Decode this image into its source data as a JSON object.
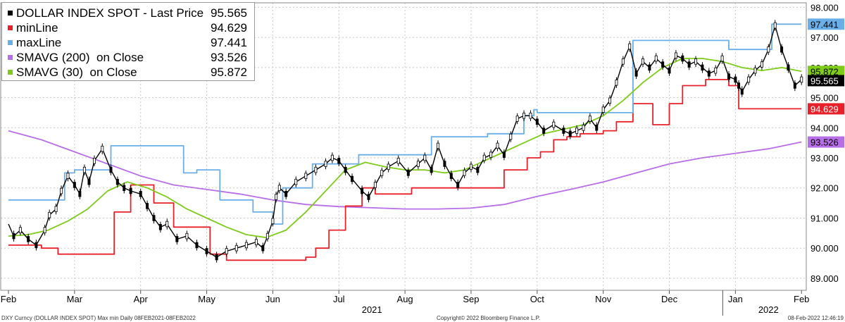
{
  "chart_data": {
    "type": "line",
    "title": "DOLLAR INDEX SPOT",
    "y_ticks": [
      "89.000",
      "90.000",
      "91.000",
      "92.000",
      "93.000",
      "94.000",
      "95.000",
      "96.000",
      "97.000",
      "98.000"
    ],
    "ylim": [
      88.6,
      98.15
    ],
    "x_months": [
      {
        "label": "Feb",
        "x": 0
      },
      {
        "label": "Mar",
        "x": 1
      },
      {
        "label": "Apr",
        "x": 2
      },
      {
        "label": "May",
        "x": 3
      },
      {
        "label": "Jun",
        "x": 4
      },
      {
        "label": "Jul",
        "x": 5
      },
      {
        "label": "Aug",
        "x": 6
      },
      {
        "label": "Sep",
        "x": 7
      },
      {
        "label": "Oct",
        "x": 8
      },
      {
        "label": "Nov",
        "x": 9
      },
      {
        "label": "Dec",
        "x": 10
      },
      {
        "label": "Jan",
        "x": 11
      },
      {
        "label": "Feb",
        "x": 12
      }
    ],
    "x_years": [
      {
        "label": "2021",
        "x": 5.5
      },
      {
        "label": "2022",
        "x": 11.5
      }
    ],
    "xlim": [
      0,
      12.2
    ],
    "legend": [
      {
        "name": "DOLLAR INDEX SPOT - Last Price",
        "value": "95.565",
        "color": "#000000"
      },
      {
        "name": "minLine",
        "value": "94.629",
        "color": "#e8202a"
      },
      {
        "name": "maxLine",
        "value": "97.441",
        "color": "#6aaee8"
      },
      {
        "name": "SMAVG (200)  on Close",
        "value": "93.526",
        "color": "#b86ee6"
      },
      {
        "name": "SMAVG (30)  on Close",
        "value": "95.872",
        "color": "#7ecb1a"
      }
    ],
    "last_value_tags": [
      {
        "series": "maxLine",
        "value": 97.441,
        "text": "97.441",
        "bg": "#6aaee8",
        "fg": "#000000"
      },
      {
        "series": "SMAVG (30)  on Close",
        "value": 95.872,
        "text": "95.872",
        "bg": "#7ecb1a",
        "fg": "#000000"
      },
      {
        "series": "DOLLAR INDEX SPOT - Last Price",
        "value": 95.565,
        "text": "95.565",
        "bg": "#000000",
        "fg": "#ffffff"
      },
      {
        "series": "minLine",
        "value": 94.629,
        "text": "94.629",
        "bg": "#e8202a",
        "fg": "#ffffff"
      },
      {
        "series": "SMAVG (200)  on Close",
        "value": 93.526,
        "text": "93.526",
        "bg": "#b86ee6",
        "fg": "#000000"
      }
    ],
    "series": [
      {
        "name": "DOLLAR INDEX SPOT - Last Price",
        "color": "#000000",
        "x": [
          0,
          0.08,
          0.18,
          0.3,
          0.42,
          0.55,
          0.62,
          0.72,
          0.8,
          0.9,
          1.0,
          1.08,
          1.15,
          1.22,
          1.3,
          1.42,
          1.55,
          1.65,
          1.75,
          1.85,
          2.0,
          2.1,
          2.2,
          2.3,
          2.4,
          2.55,
          2.7,
          2.85,
          3.0,
          3.15,
          3.3,
          3.45,
          3.6,
          3.75,
          3.85,
          3.92,
          4.0,
          4.05,
          4.1,
          4.2,
          4.35,
          4.5,
          4.65,
          4.8,
          4.9,
          5.0,
          5.1,
          5.2,
          5.35,
          5.45,
          5.55,
          5.65,
          5.75,
          5.9,
          6.05,
          6.2,
          6.3,
          6.4,
          6.5,
          6.6,
          6.7,
          6.8,
          6.9,
          7.0,
          7.1,
          7.2,
          7.3,
          7.4,
          7.5,
          7.6,
          7.7,
          7.8,
          7.9,
          8.0,
          8.1,
          8.25,
          8.4,
          8.5,
          8.6,
          8.7,
          8.8,
          8.9,
          9.0,
          9.1,
          9.2,
          9.3,
          9.4,
          9.5,
          9.6,
          9.7,
          9.8,
          9.9,
          10.0,
          10.1,
          10.2,
          10.3,
          10.4,
          10.5,
          10.6,
          10.7,
          10.8,
          10.9,
          11.0,
          11.05,
          11.1,
          11.2,
          11.3,
          11.4,
          11.5,
          11.6,
          11.7,
          11.8,
          11.9,
          12.0
        ],
        "y": [
          90.8,
          90.4,
          90.6,
          90.3,
          90.1,
          90.6,
          91.1,
          91.3,
          91.9,
          92.4,
          92.1,
          91.8,
          92.6,
          92.2,
          92.9,
          93.3,
          92.6,
          92.2,
          92.0,
          91.9,
          91.8,
          91.4,
          91.0,
          90.7,
          90.8,
          90.3,
          90.4,
          90.1,
          89.9,
          89.7,
          89.9,
          90.0,
          90.1,
          90.2,
          90.0,
          90.4,
          90.9,
          91.7,
          92.0,
          91.8,
          92.2,
          92.4,
          92.6,
          92.8,
          93.0,
          92.9,
          92.6,
          92.3,
          91.9,
          91.7,
          92.1,
          92.5,
          92.7,
          92.9,
          92.5,
          92.8,
          93.0,
          92.6,
          93.4,
          92.8,
          92.4,
          92.1,
          92.5,
          92.7,
          92.6,
          93.0,
          93.1,
          93.4,
          93.1,
          93.7,
          94.3,
          94.4,
          94.4,
          94.2,
          93.9,
          94.1,
          93.9,
          93.8,
          93.9,
          94.0,
          94.3,
          94.0,
          94.6,
          94.9,
          95.5,
          96.2,
          96.7,
          95.8,
          96.2,
          96.0,
          96.3,
          96.1,
          95.9,
          96.4,
          96.3,
          96.1,
          96.2,
          96.0,
          95.8,
          95.9,
          96.3,
          95.7,
          95.6,
          95.4,
          95.2,
          95.6,
          95.9,
          96.1,
          96.6,
          97.4,
          96.6,
          96.0,
          95.4,
          95.6
        ]
      },
      {
        "name": "minLine",
        "color": "#e8202a",
        "x": [
          0,
          0.5,
          0.5,
          0.75,
          0.75,
          1.6,
          1.6,
          1.85,
          1.85,
          2.2,
          2.2,
          2.5,
          2.5,
          3.05,
          3.05,
          3.3,
          3.3,
          4.5,
          4.5,
          4.65,
          4.65,
          4.85,
          4.85,
          5.1,
          5.1,
          5.35,
          5.35,
          5.55,
          5.55,
          6.1,
          6.1,
          7.5,
          7.5,
          7.85,
          7.85,
          8.05,
          8.05,
          8.25,
          8.25,
          8.45,
          8.45,
          8.65,
          8.65,
          9.0,
          9.0,
          9.2,
          9.2,
          9.45,
          9.45,
          9.75,
          9.75,
          10.0,
          10.0,
          10.2,
          10.2,
          10.55,
          10.55,
          10.9,
          10.9,
          11.05,
          11.05,
          12.0
        ],
        "y": [
          90.1,
          90.1,
          90.0,
          90.0,
          89.8,
          89.8,
          91.2,
          91.2,
          92.1,
          92.1,
          91.5,
          91.5,
          90.7,
          90.7,
          89.8,
          89.8,
          89.6,
          89.6,
          89.7,
          89.7,
          90.0,
          90.0,
          90.6,
          90.6,
          91.4,
          91.4,
          92.0,
          92.0,
          91.8,
          91.8,
          92.0,
          92.0,
          92.6,
          92.6,
          93.0,
          93.0,
          93.2,
          93.2,
          93.6,
          93.6,
          93.7,
          93.7,
          93.8,
          93.8,
          93.9,
          93.9,
          94.2,
          94.2,
          94.8,
          94.8,
          94.1,
          94.1,
          94.8,
          94.8,
          95.4,
          95.4,
          95.6,
          95.6,
          95.4,
          95.4,
          94.629,
          94.629
        ]
      },
      {
        "name": "maxLine",
        "color": "#6aaee8",
        "x": [
          0,
          0.85,
          0.85,
          1.0,
          1.0,
          1.55,
          1.55,
          2.65,
          2.65,
          2.85,
          2.85,
          3.2,
          3.2,
          3.7,
          3.7,
          4.0,
          4.0,
          4.15,
          4.15,
          4.6,
          4.6,
          5.3,
          5.3,
          6.4,
          6.4,
          7.25,
          7.25,
          7.8,
          7.8,
          7.95,
          7.95,
          8.0,
          8.0,
          8.95,
          8.95,
          9.45,
          9.45,
          10.0,
          10.0,
          10.85,
          10.85,
          10.9,
          10.9,
          11.55,
          11.55,
          12.0
        ],
        "y": [
          91.6,
          91.6,
          92.5,
          92.5,
          92.6,
          92.6,
          93.4,
          93.4,
          92.5,
          92.5,
          92.6,
          92.6,
          91.6,
          91.6,
          91.2,
          91.2,
          90.8,
          90.8,
          92.0,
          92.0,
          92.8,
          92.8,
          93.1,
          93.1,
          93.7,
          93.7,
          93.8,
          93.8,
          94.4,
          94.4,
          94.6,
          94.6,
          94.5,
          94.5,
          94.5,
          94.5,
          96.9,
          96.9,
          96.9,
          96.9,
          96.9,
          96.9,
          96.6,
          96.6,
          97.441,
          97.441
        ]
      },
      {
        "name": "SMAVG (200)  on Close",
        "color": "#b86ee6",
        "x": [
          0,
          0.5,
          1.0,
          1.5,
          2.0,
          2.5,
          3.0,
          3.5,
          4.0,
          4.5,
          5.0,
          5.5,
          6.0,
          6.5,
          7.0,
          7.5,
          8.0,
          8.5,
          9.0,
          9.5,
          10.0,
          10.5,
          11.0,
          11.5,
          12.0
        ],
        "y": [
          93.9,
          93.6,
          93.2,
          92.8,
          92.4,
          92.1,
          91.95,
          91.8,
          91.6,
          91.45,
          91.38,
          91.34,
          91.3,
          91.3,
          91.33,
          91.45,
          91.72,
          91.95,
          92.2,
          92.5,
          92.8,
          93.0,
          93.15,
          93.3,
          93.526
        ]
      },
      {
        "name": "SMAVG (30)  on Close",
        "color": "#7ecb1a",
        "x": [
          0,
          0.3,
          0.6,
          0.9,
          1.2,
          1.5,
          1.8,
          2.1,
          2.4,
          2.7,
          3.0,
          3.3,
          3.6,
          3.9,
          4.2,
          4.5,
          4.8,
          5.1,
          5.4,
          5.7,
          6.0,
          6.3,
          6.6,
          6.9,
          7.2,
          7.5,
          7.8,
          8.1,
          8.4,
          8.7,
          9.0,
          9.3,
          9.6,
          9.9,
          10.2,
          10.5,
          10.8,
          11.1,
          11.4,
          11.7,
          12.0
        ],
        "y": [
          90.4,
          90.45,
          90.6,
          90.9,
          91.3,
          91.9,
          92.2,
          92.0,
          91.7,
          91.3,
          91.0,
          90.7,
          90.45,
          90.35,
          90.6,
          91.2,
          91.9,
          92.6,
          92.85,
          92.7,
          92.6,
          92.6,
          92.5,
          92.6,
          92.9,
          93.2,
          93.5,
          93.8,
          93.95,
          94.1,
          94.4,
          94.9,
          95.5,
          96.0,
          96.3,
          96.3,
          96.2,
          96.0,
          95.9,
          96.0,
          95.872
        ]
      }
    ]
  },
  "footer": {
    "left": "DXY Curncy (DOLLAR INDEX SPOT) Max min  Daily 08FEB2021-08FEB2022",
    "center": "Copyright© 2022 Bloomberg Finance L.P.",
    "right": "08-Feb-2022 12:46:19"
  }
}
